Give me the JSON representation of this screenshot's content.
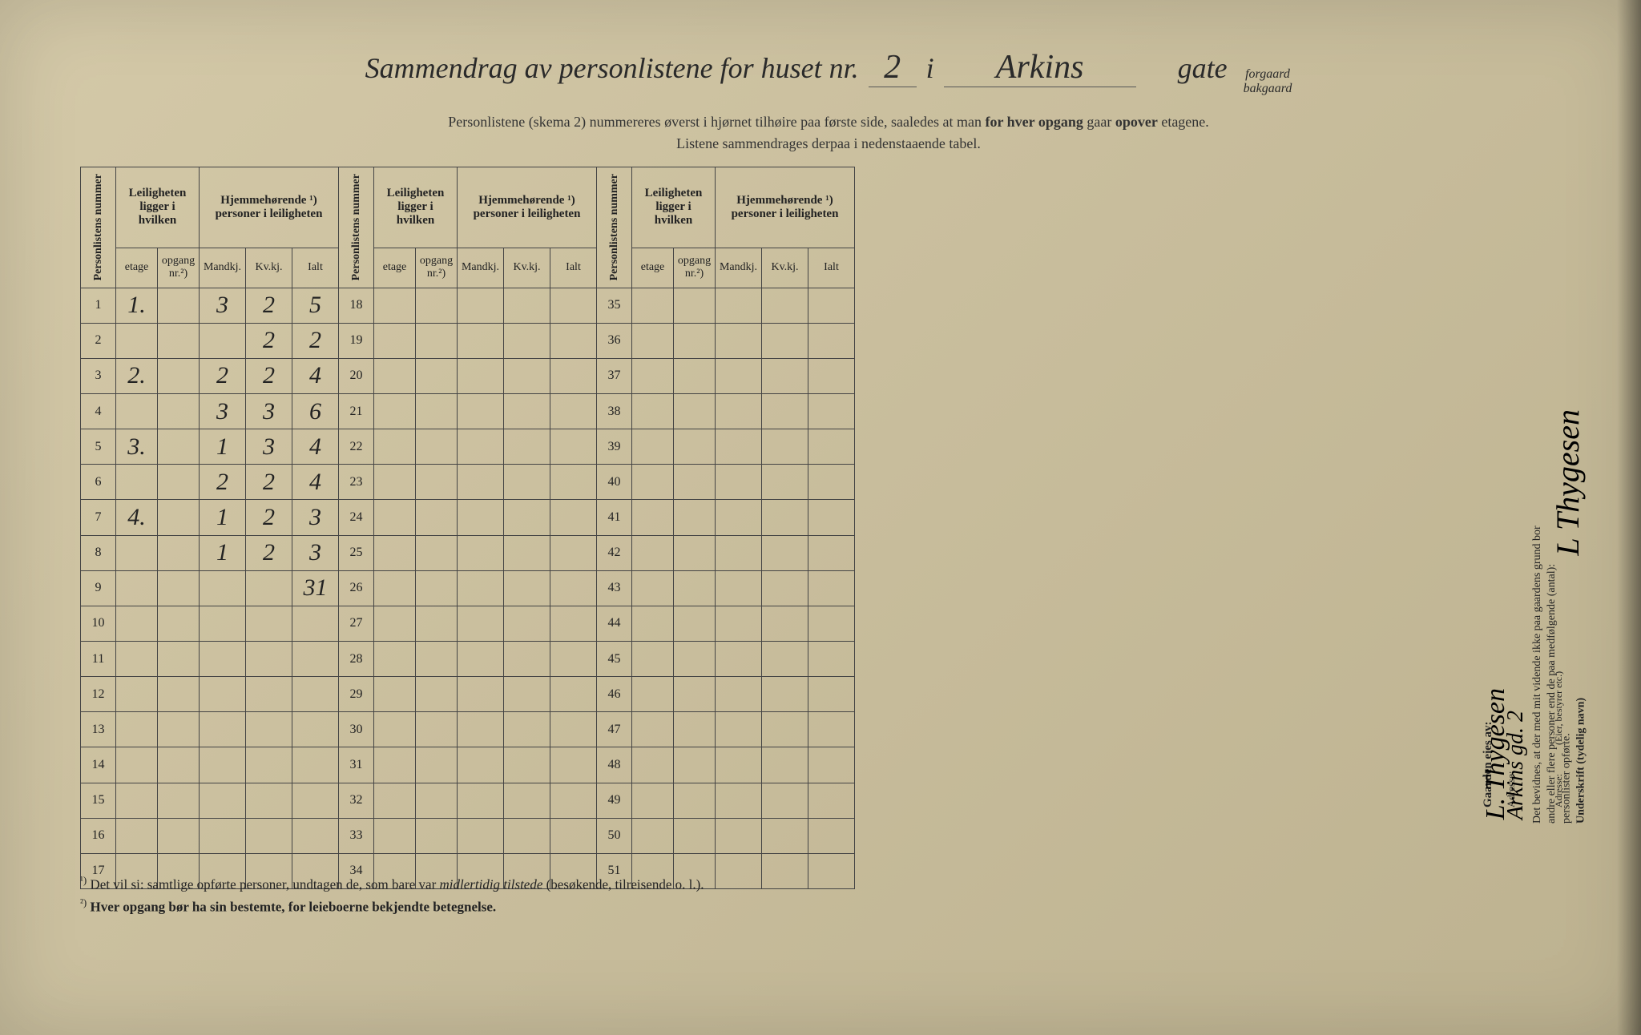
{
  "header": {
    "title_prefix": "Sammendrag av personlistene for huset nr.",
    "house_nr": "2",
    "in_word": "i",
    "street": "Arkins",
    "gate_word": "gate",
    "forgaard": "forgaard",
    "bakgaard": "bakgaard",
    "subtitle_line1_a": "Personlistene (skema 2) nummereres øverst i hjørnet tilhøire paa første side, saaledes at man ",
    "subtitle_line1_b": "for hver opgang",
    "subtitle_line1_c": " gaar ",
    "subtitle_line1_d": "opover",
    "subtitle_line1_e": " etagene.",
    "subtitle_line2": "Listene sammendrages derpaa i nedenstaaende tabel."
  },
  "table_headers": {
    "personlistens_nummer": "Personlistens nummer",
    "leiligheten": "Leiligheten ligger i hvilken",
    "hjemmehorende": "Hjemmehørende ¹) personer i leiligheten",
    "etage": "etage",
    "opgang": "opgang nr.²)",
    "mandkj": "Mandkj.",
    "kvkj": "Kv.kj.",
    "ialt": "Ialt"
  },
  "rows_block1": [
    {
      "n": "1",
      "etage": "1.",
      "opgang": "",
      "m": "3",
      "k": "2",
      "i": "5"
    },
    {
      "n": "2",
      "etage": "",
      "opgang": "",
      "m": "",
      "k": "2",
      "i": "2"
    },
    {
      "n": "3",
      "etage": "2.",
      "opgang": "",
      "m": "2",
      "k": "2",
      "i": "4"
    },
    {
      "n": "4",
      "etage": "",
      "opgang": "",
      "m": "3",
      "k": "3",
      "i": "6"
    },
    {
      "n": "5",
      "etage": "3.",
      "opgang": "",
      "m": "1",
      "k": "3",
      "i": "4"
    },
    {
      "n": "6",
      "etage": "",
      "opgang": "",
      "m": "2",
      "k": "2",
      "i": "4"
    },
    {
      "n": "7",
      "etage": "4.",
      "opgang": "",
      "m": "1",
      "k": "2",
      "i": "3"
    },
    {
      "n": "8",
      "etage": "",
      "opgang": "",
      "m": "1",
      "k": "2",
      "i": "3"
    },
    {
      "n": "9",
      "etage": "",
      "opgang": "",
      "m": "",
      "k": "",
      "i": "31"
    },
    {
      "n": "10",
      "etage": "",
      "opgang": "",
      "m": "",
      "k": "",
      "i": ""
    },
    {
      "n": "11",
      "etage": "",
      "opgang": "",
      "m": "",
      "k": "",
      "i": ""
    },
    {
      "n": "12",
      "etage": "",
      "opgang": "",
      "m": "",
      "k": "",
      "i": ""
    },
    {
      "n": "13",
      "etage": "",
      "opgang": "",
      "m": "",
      "k": "",
      "i": ""
    },
    {
      "n": "14",
      "etage": "",
      "opgang": "",
      "m": "",
      "k": "",
      "i": ""
    },
    {
      "n": "15",
      "etage": "",
      "opgang": "",
      "m": "",
      "k": "",
      "i": ""
    },
    {
      "n": "16",
      "etage": "",
      "opgang": "",
      "m": "",
      "k": "",
      "i": ""
    },
    {
      "n": "17",
      "etage": "",
      "opgang": "",
      "m": "",
      "k": "",
      "i": ""
    }
  ],
  "rows_block2_start": 18,
  "rows_block3_start": 35,
  "footnotes": {
    "fn1": "Det vil si: samtlige opførte personer, undtagen de, som bare var ",
    "fn1_italic": "midlertidig tilstede",
    "fn1_end": " (besøkende, tilreisende o. l.).",
    "fn2": "Hver opgang bør ha sin bestemte, for leieboerne bekjendte betegnelse."
  },
  "right_panel": {
    "gaarden_eies": "Gaarden eies av:",
    "bevidnes": "Det bevidnes, at der med mit vidende ikke paa gaardens grund bor",
    "andre": "andre eller flere personer end de paa medfølgende (antal):",
    "personlister": "personlister opførte.",
    "underskrift": "Underskrift (tydelig navn)",
    "adresse": "Adresse:",
    "eier_label": "(Eier, bestyrer etc.)",
    "signature1": "L. Thygesen",
    "signature2": "L Thygesen",
    "address_value": "Arkins gd. 2"
  },
  "colors": {
    "paper": "#d4c9a8",
    "ink": "#2a2a2a",
    "border": "#444444",
    "handwriting": "#1a1a1a"
  }
}
